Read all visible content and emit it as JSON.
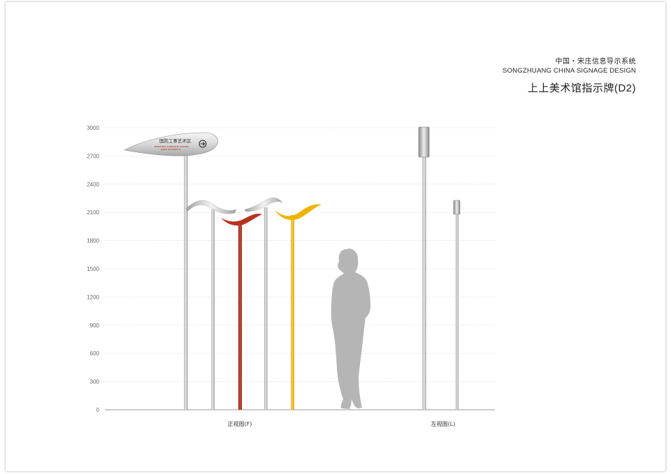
{
  "header": {
    "title_cn": "中国・宋庄信息导示系统",
    "title_en": "SONGZHUANG CHINA SIGNAGE DESIGN",
    "sheet_title": "上上美术馆指示牌(D2)"
  },
  "sign": {
    "label_cn": "国防工事艺术区",
    "label_en_1": "DEFENSE FORTIFICATIONS",
    "label_en_2": "ARTS DISTRICT",
    "arrow_icon": "arrow-right-circle-icon"
  },
  "scale": {
    "ticks": [
      "3000",
      "2700",
      "2400",
      "2100",
      "1800",
      "1500",
      "1200",
      "900",
      "600",
      "300",
      "0"
    ]
  },
  "views": {
    "front_label": "正视图(F)",
    "side_label": "左视图(L)"
  },
  "colors": {
    "red": "#b83320",
    "yellow": "#efb300",
    "silver": "#bfbfbf",
    "silhouette": "#b5b5b5"
  }
}
